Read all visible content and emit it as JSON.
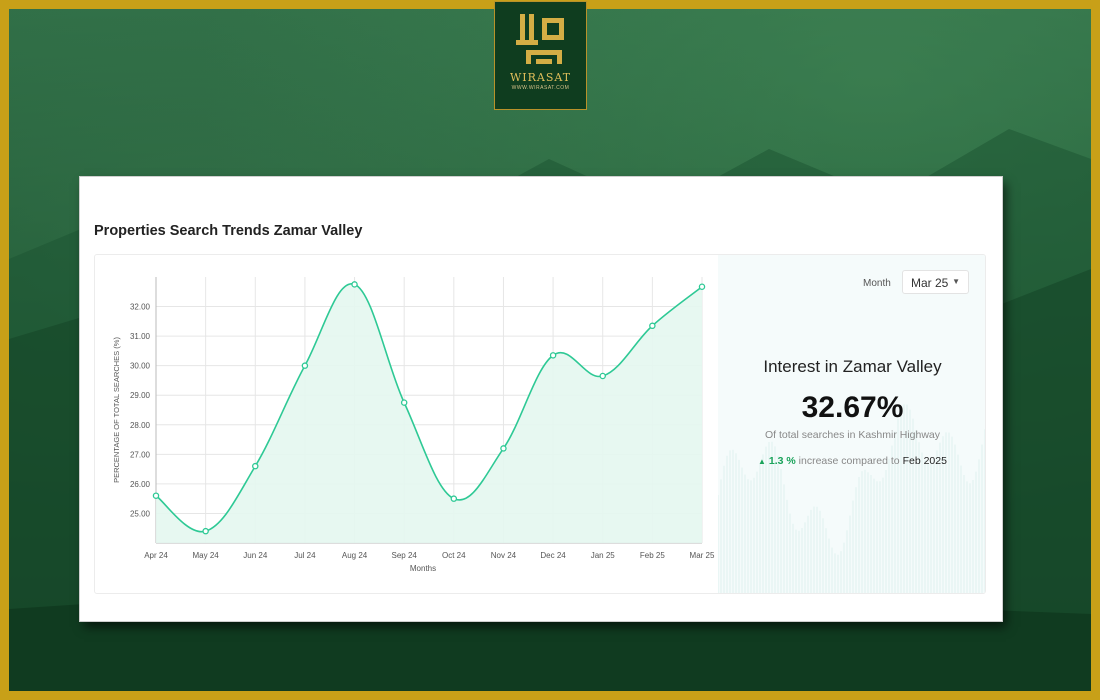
{
  "brand": {
    "name": "WIRASAT",
    "url": "WWW.WIRASAT.COM",
    "gold": "#c8a018",
    "green": "#0f3d1f"
  },
  "card": {
    "title": "Properties Search Trends Zamar Valley"
  },
  "panel": {
    "month_label": "Month",
    "selected_month": "Mar 25",
    "interest_title": "Interest in Zamar Valley",
    "value": "32.67%",
    "subtitle": "Of total searches in Kashmir Highway",
    "change_value": "1.3 %",
    "change_text": "increase compared to",
    "change_ref": "Feb 2025"
  },
  "chart_data": {
    "type": "area",
    "categories": [
      "Apr 24",
      "May 24",
      "Jun 24",
      "Jul 24",
      "Aug 24",
      "Sep 24",
      "Oct 24",
      "Nov 24",
      "Dec 24",
      "Jan 25",
      "Feb 25",
      "Mar 25"
    ],
    "values": [
      25.6,
      24.4,
      26.6,
      30.0,
      32.75,
      28.75,
      25.5,
      27.2,
      30.35,
      29.65,
      31.35,
      32.67
    ],
    "xlabel": "Months",
    "ylabel": "PERCENTAGE OF TOTAL SEARCHES (%)",
    "ylim": [
      24.0,
      33.0
    ],
    "yticks": [
      "25.00",
      "26.00",
      "27.00",
      "28.00",
      "29.00",
      "30.00",
      "31.00",
      "32.00"
    ],
    "grid": true,
    "line_color": "#2ec995",
    "fill_color": "#e4f7f0"
  }
}
